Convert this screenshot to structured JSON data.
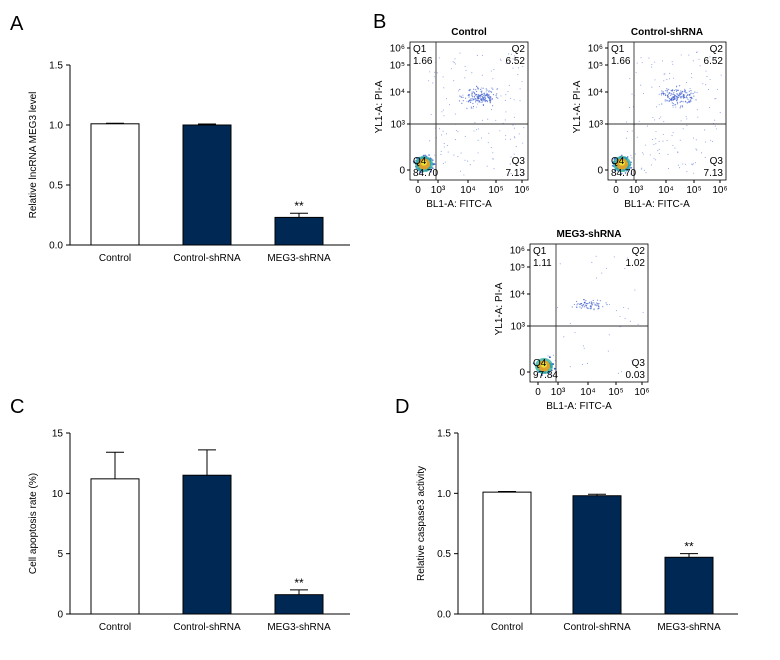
{
  "colors": {
    "dark_bar": "#002855",
    "white_bar": "#ffffff",
    "axis": "#000000",
    "dot": "#3355cc",
    "dense": "#f2a01e",
    "core": "#e8e33a"
  },
  "panel_labels": [
    "A",
    "B",
    "C",
    "D"
  ],
  "chart_data": [
    {
      "panel": "A",
      "type": "bar",
      "categories": [
        "Control",
        "Control-shRNA",
        "MEG3-shRNA"
      ],
      "values": [
        1.01,
        1.0,
        0.23
      ],
      "errors": [
        0.005,
        0.008,
        0.035
      ],
      "annotations": [
        "",
        "",
        "**"
      ],
      "ylabel": "Relative lncRNA MEG3 level",
      "ylim": [
        0,
        1.5
      ],
      "yticks": [
        "0.0",
        "0.5",
        "1.0",
        "1.5"
      ],
      "ytick_values": [
        0,
        0.5,
        1.0,
        1.5
      ],
      "bar_fill": [
        "white",
        "dark",
        "dark"
      ]
    },
    {
      "panel": "C",
      "type": "bar",
      "categories": [
        "Control",
        "Control-shRNA",
        "MEG3-shRNA"
      ],
      "values": [
        11.2,
        11.5,
        1.6
      ],
      "errors": [
        2.2,
        2.1,
        0.4
      ],
      "annotations": [
        "",
        "",
        "**"
      ],
      "ylabel": "Cell apoptosis rate (%)",
      "ylim": [
        0,
        15
      ],
      "yticks": [
        "0",
        "5",
        "10",
        "15"
      ],
      "ytick_values": [
        0,
        5,
        10,
        15
      ],
      "bar_fill": [
        "white",
        "dark",
        "dark"
      ]
    },
    {
      "panel": "D",
      "type": "bar",
      "categories": [
        "Control",
        "Control-shRNA",
        "MEG3-shRNA"
      ],
      "values": [
        1.01,
        0.98,
        0.47
      ],
      "errors": [
        0.005,
        0.012,
        0.03
      ],
      "annotations": [
        "",
        "",
        "**"
      ],
      "ylabel": "Relative caspase3 activity",
      "ylim": [
        0,
        1.5
      ],
      "yticks": [
        "0.0",
        "0.5",
        "1.0",
        "1.5"
      ],
      "ytick_values": [
        0,
        0.5,
        1.0,
        1.5
      ],
      "bar_fill": [
        "white",
        "dark",
        "dark"
      ]
    },
    {
      "panel": "B",
      "type": "scatter",
      "xlabel": "BL1-A: FITC-A",
      "ylabel": "YL1-A: PI-A",
      "xticks": [
        "0",
        "10³",
        "10⁴",
        "10⁵",
        "10⁶"
      ],
      "yticks": [
        "0",
        "10³",
        "10⁴",
        "10⁵",
        "10⁶"
      ],
      "plots": [
        {
          "title": "Control",
          "quadrants": {
            "Q1": "1.66",
            "Q2": "6.52",
            "Q3": "7.13",
            "Q4": "84.70"
          }
        },
        {
          "title": "Control-shRNA",
          "quadrants": {
            "Q1": "1.66",
            "Q2": "6.52",
            "Q3": "7.13",
            "Q4": "84.70"
          }
        },
        {
          "title": "MEG3-shRNA",
          "quadrants": {
            "Q1": "1.11",
            "Q2": "1.02",
            "Q3": "0.03",
            "Q4": "97.84"
          }
        }
      ]
    }
  ]
}
